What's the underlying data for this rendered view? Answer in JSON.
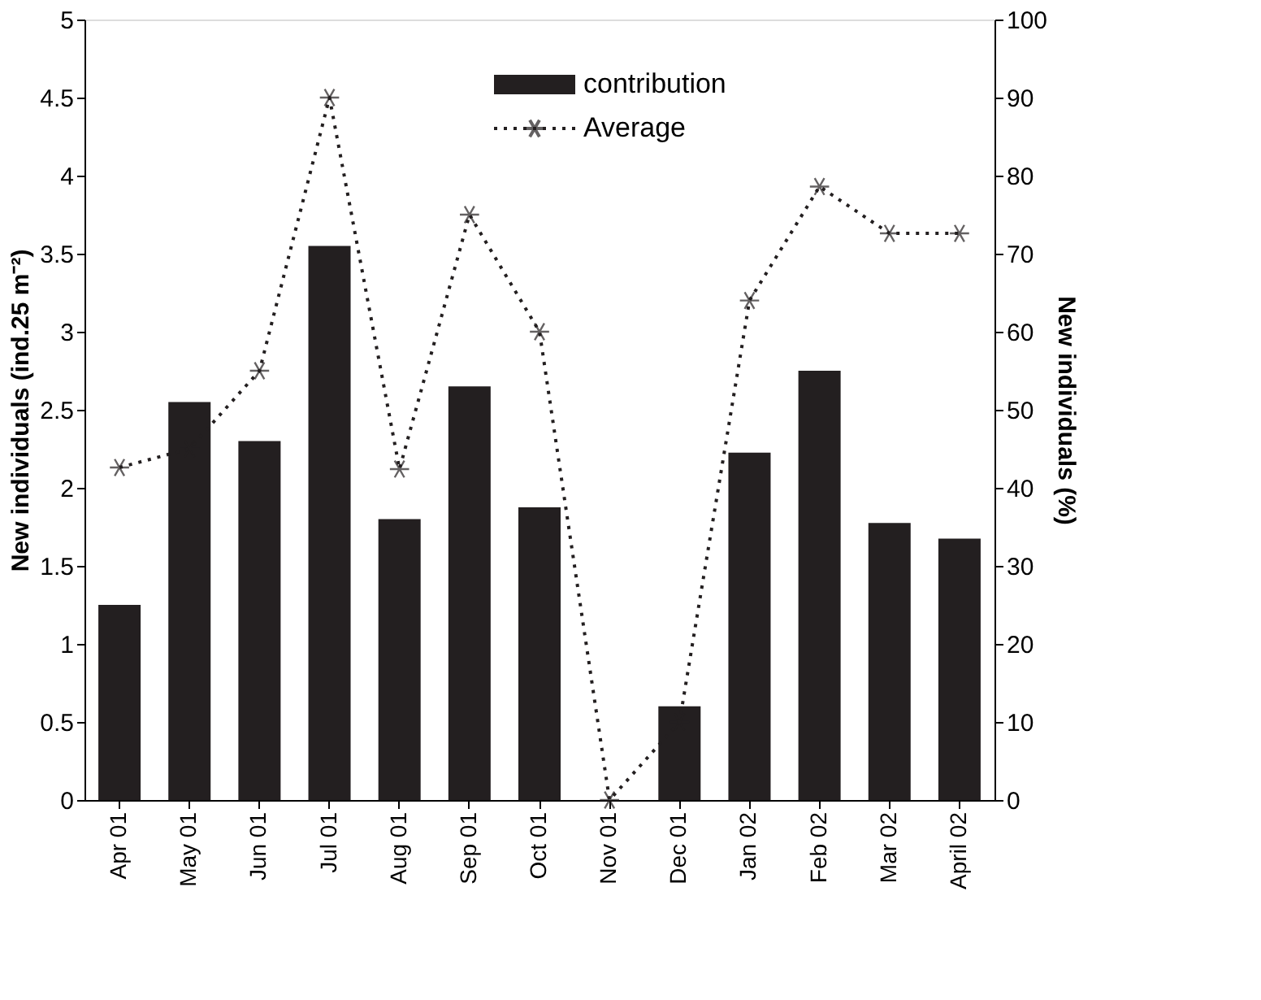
{
  "chart_data": {
    "type": "bar",
    "categories": [
      "Apr 01",
      "May 01",
      "Jun 01",
      "Jul 01",
      "Aug 01",
      "Sep 01",
      "Oct 01",
      "Nov 01",
      "Dec 01",
      "Jan 02",
      "Feb 02",
      "Mar 02",
      "April 02"
    ],
    "series": [
      {
        "name": "contribution",
        "axis": "y2",
        "color": "#231f20",
        "values": [
          25,
          51,
          46,
          71,
          36,
          53,
          37.5,
          0,
          12,
          44.5,
          55,
          35.5,
          33.5
        ]
      },
      {
        "name": "Average",
        "type": "line",
        "axis": "y",
        "color": "#231f20",
        "marker": "cross",
        "line_style": "dotted",
        "values": [
          2.13,
          2.25,
          2.75,
          4.5,
          2.12,
          3.75,
          3.0,
          0,
          0.5,
          3.2,
          3.93,
          3.63,
          3.63
        ]
      }
    ],
    "ylabel": "New individuals (ind.25 m⁻²)",
    "y2label": "New individuals (%)",
    "ylim": [
      0,
      5
    ],
    "yticks": [
      0,
      0.5,
      1,
      1.5,
      2,
      2.5,
      3,
      3.5,
      4,
      4.5,
      5
    ],
    "y2lim": [
      0,
      100
    ],
    "y2ticks": [
      0,
      10,
      20,
      30,
      40,
      50,
      60,
      70,
      80,
      90,
      100
    ],
    "grid": false,
    "legend": "top right"
  }
}
